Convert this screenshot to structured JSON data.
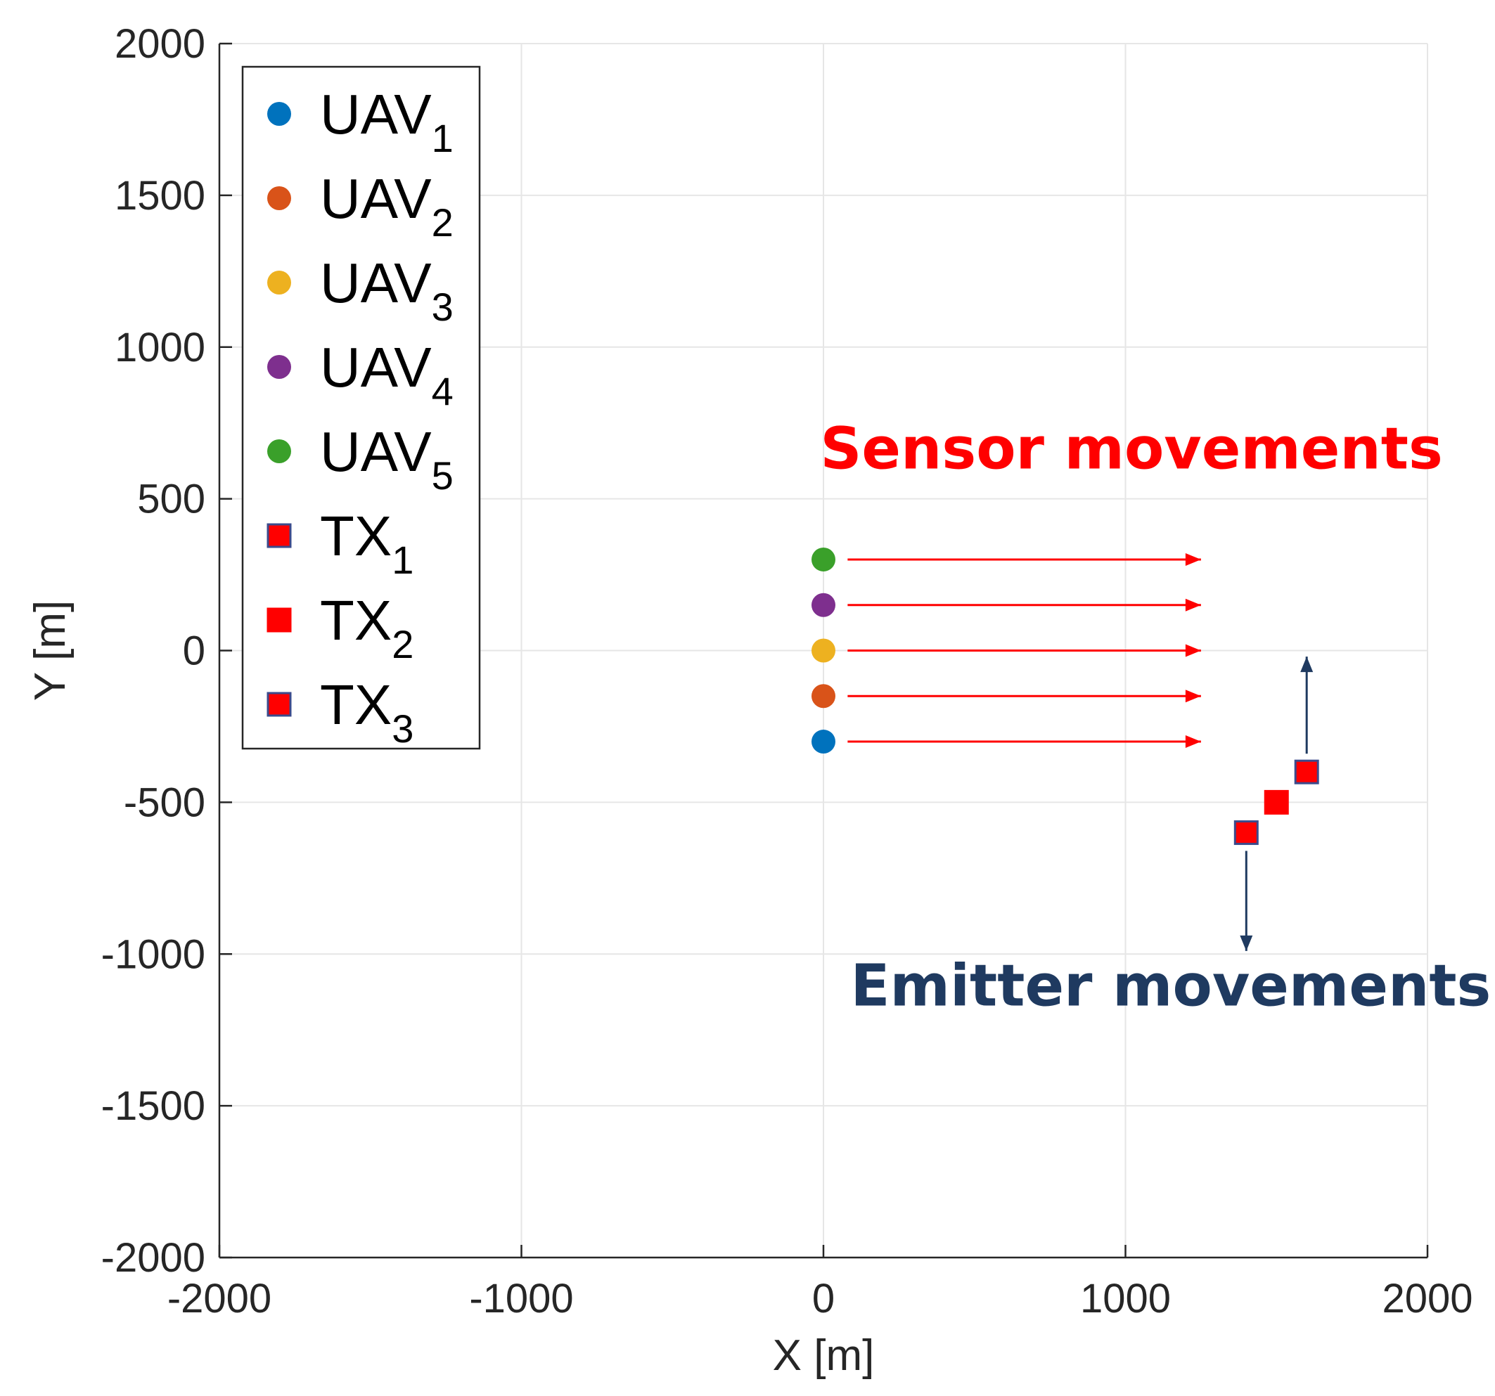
{
  "chart_data": {
    "type": "scatter",
    "title": "",
    "xlabel": "X [m]",
    "ylabel": "Y [m]",
    "xlim": [
      -2000,
      2000
    ],
    "ylim": [
      -2000,
      2000
    ],
    "xticks": [
      -2000,
      -1000,
      0,
      1000,
      2000
    ],
    "yticks": [
      2000,
      1500,
      1000,
      500,
      0,
      -500,
      -1000,
      -1500,
      -2000
    ],
    "x_tick_labels": [
      "-2000",
      "-1000",
      "0",
      "1000",
      "2000"
    ],
    "y_tick_labels": [
      "2000",
      "1500",
      "1000",
      "500",
      "0",
      "-500",
      "-1000",
      "-1500",
      "-2000"
    ],
    "grid": true,
    "legend_position": "top-left",
    "series": [
      {
        "name_base": "UAV",
        "name_sub": "1",
        "marker": "circle",
        "color": "#0072BD",
        "x": 0,
        "y": -300
      },
      {
        "name_base": "UAV",
        "name_sub": "2",
        "marker": "circle",
        "color": "#D95319",
        "x": 0,
        "y": -150
      },
      {
        "name_base": "UAV",
        "name_sub": "3",
        "marker": "circle",
        "color": "#EDB120",
        "x": 0,
        "y": 0
      },
      {
        "name_base": "UAV",
        "name_sub": "4",
        "marker": "circle",
        "color": "#7E2F8E",
        "x": 0,
        "y": 150
      },
      {
        "name_base": "UAV",
        "name_sub": "5",
        "marker": "circle",
        "color": "#3AA02A",
        "x": 0,
        "y": 300
      },
      {
        "name_base": "TX",
        "name_sub": "1",
        "marker": "square",
        "color": "#FF0000",
        "edge": "#3B4B8C",
        "x": 1400,
        "y": -600
      },
      {
        "name_base": "TX",
        "name_sub": "2",
        "marker": "square",
        "color": "#FF0000",
        "edge": "#FF0000",
        "x": 1500,
        "y": -500
      },
      {
        "name_base": "TX",
        "name_sub": "3",
        "marker": "square",
        "color": "#FF0000",
        "edge": "#3B4B8C",
        "x": 1600,
        "y": -400
      }
    ],
    "sensor_arrows": {
      "color": "#FF0000",
      "x_from": 80,
      "x_to": 1250,
      "y": [
        300,
        150,
        0,
        -150,
        -300
      ]
    },
    "emitter_arrows": {
      "color": "#1F3A60",
      "items": [
        {
          "x": 1600,
          "y_from": -340,
          "y_to": -20
        },
        {
          "x": 1400,
          "y_from": -660,
          "y_to": -990
        }
      ]
    },
    "annotations": [
      {
        "text": "Sensor movements",
        "color": "#FF0000",
        "x": 1020,
        "y": 600
      },
      {
        "text": "Emitter movements",
        "color": "#1F3A60",
        "x": 1150,
        "y": -1170
      }
    ]
  }
}
